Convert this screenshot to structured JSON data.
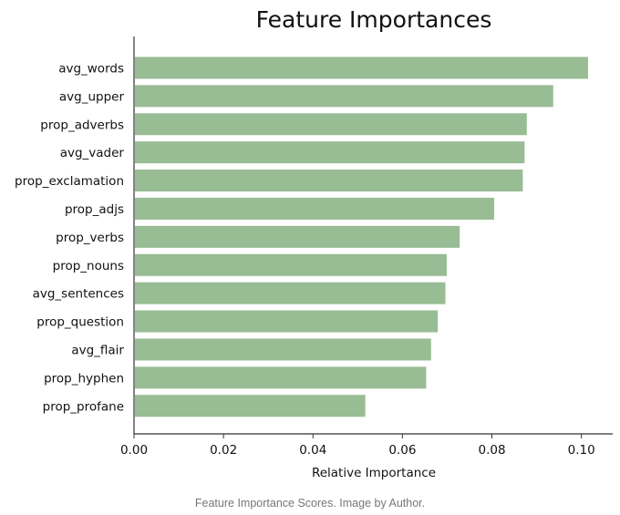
{
  "chart_data": {
    "type": "bar",
    "orientation": "horizontal",
    "title": "Feature Importances",
    "xlabel": "Relative Importance",
    "ylabel": "",
    "xlim": [
      0,
      0.107
    ],
    "xticks": [
      "0.00",
      "0.02",
      "0.04",
      "0.06",
      "0.08",
      "0.10"
    ],
    "bar_color": "#98bc93",
    "categories": [
      "avg_words",
      "avg_upper",
      "prop_adverbs",
      "avg_vader",
      "prop_exclamation",
      "prop_adjs",
      "prop_verbs",
      "prop_nouns",
      "avg_sentences",
      "prop_question",
      "avg_flair",
      "prop_hyphen",
      "prop_profane"
    ],
    "values": [
      0.1015,
      0.0937,
      0.0878,
      0.0873,
      0.0869,
      0.0805,
      0.0728,
      0.0699,
      0.0696,
      0.0679,
      0.0664,
      0.0653,
      0.0517
    ],
    "grid": false,
    "legend": "none"
  },
  "caption": "Feature Importance Scores. Image by Author."
}
